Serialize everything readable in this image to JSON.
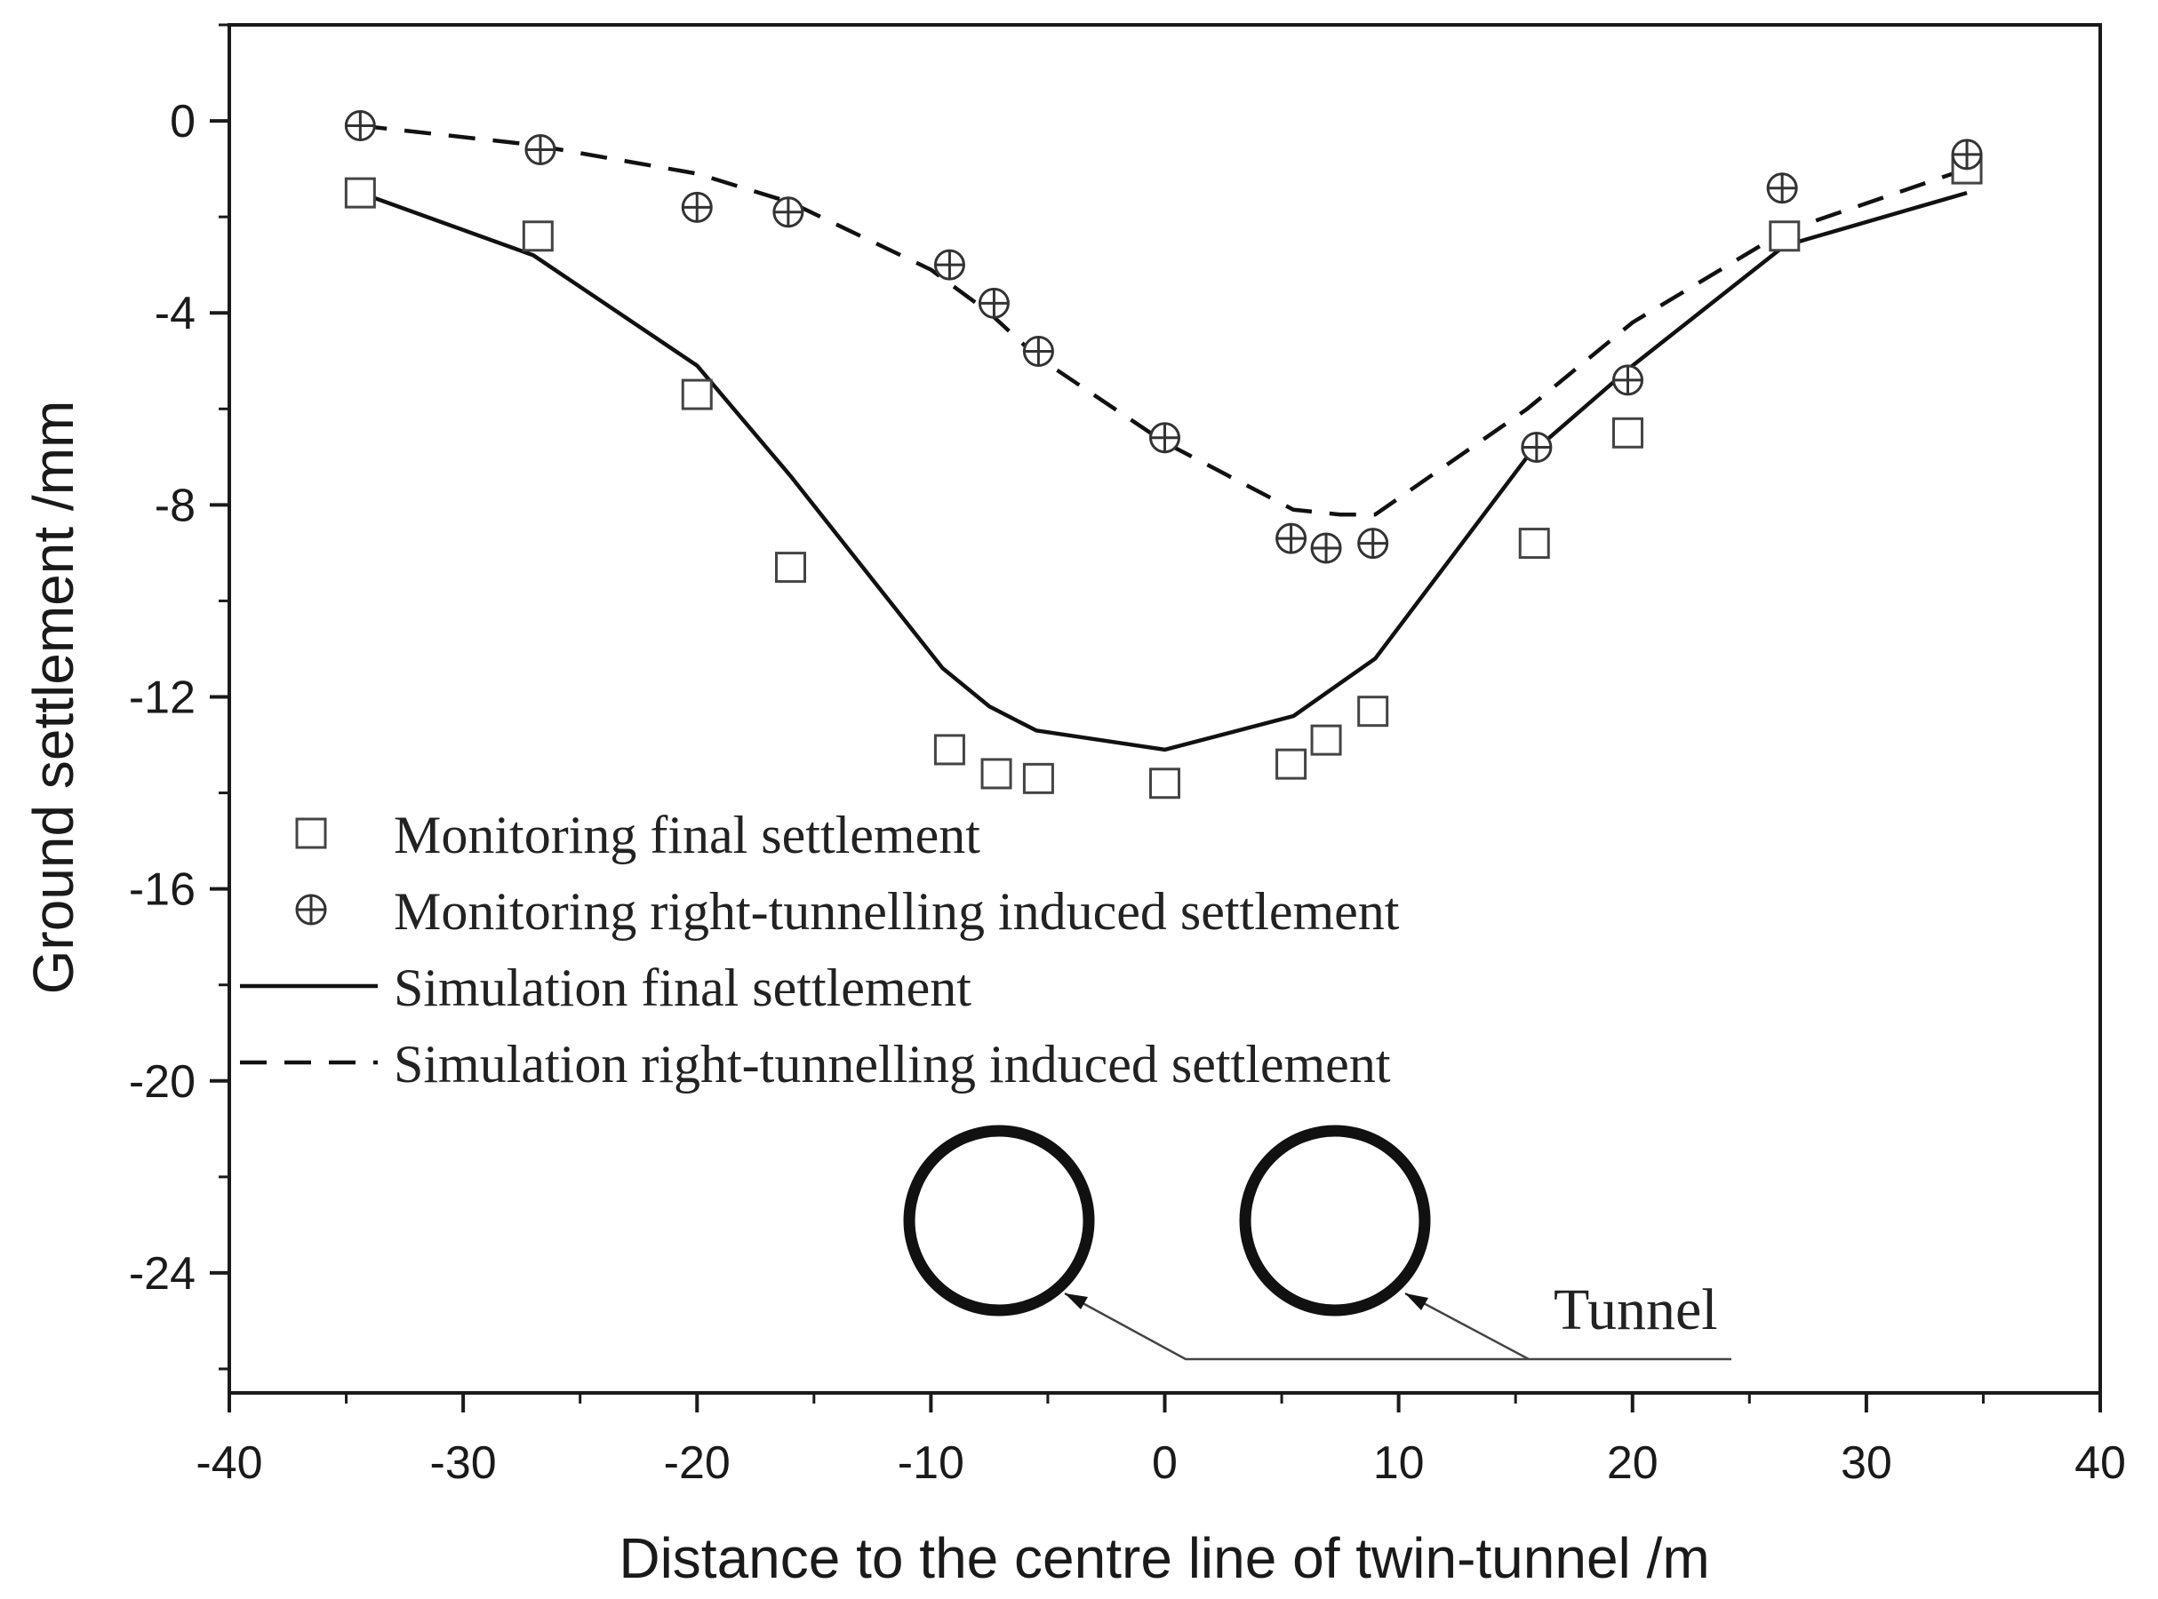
{
  "chart_data": {
    "type": "line",
    "title": "",
    "xlabel": "Distance to the centre line of twin-tunnel /m",
    "ylabel": "Ground settlement /mm",
    "xlim": [
      -40,
      40
    ],
    "ylim": [
      -26.5,
      2
    ],
    "xticks": [
      -40,
      -30,
      -20,
      -10,
      0,
      10,
      20,
      30,
      40
    ],
    "xtick_labels": [
      "-40",
      "-30",
      "-20",
      "-10",
      "0",
      "10",
      "20",
      "30",
      "40"
    ],
    "yticks": [
      0,
      -4,
      -8,
      -12,
      -16,
      -20,
      -24
    ],
    "ytick_labels": [
      "0",
      "-4",
      "-8",
      "-12",
      "-16",
      "-20",
      "-24"
    ],
    "grid": false,
    "legend_position": "lower-left",
    "series": [
      {
        "name": "Monitoring final settlement",
        "kind": "scatter",
        "marker": "square",
        "x": [
          -34.4,
          -26.8,
          -20.0,
          -16.0,
          -9.2,
          -7.2,
          -5.4,
          0.0,
          5.4,
          6.9,
          8.9,
          15.8,
          19.8,
          26.5,
          34.3
        ],
        "y": [
          -1.5,
          -2.4,
          -5.7,
          -9.3,
          -13.1,
          -13.6,
          -13.7,
          -13.8,
          -13.4,
          -12.9,
          -12.3,
          -8.8,
          -6.5,
          -2.4,
          -1.0
        ]
      },
      {
        "name": "Monitoring right-tunnelling induced settlement",
        "kind": "scatter",
        "marker": "circle-plus",
        "x": [
          -34.4,
          -26.7,
          -20.0,
          -16.1,
          -9.2,
          -7.3,
          -5.4,
          0.0,
          5.4,
          6.9,
          8.9,
          15.9,
          19.8,
          26.4,
          34.3
        ],
        "y": [
          -0.1,
          -0.6,
          -1.8,
          -1.9,
          -3.0,
          -3.8,
          -4.8,
          -6.6,
          -8.7,
          -8.9,
          -8.8,
          -6.8,
          -5.4,
          -1.4,
          -0.7
        ]
      },
      {
        "name": "Simulation final settlement",
        "kind": "line",
        "style": "solid",
        "x": [
          -34.4,
          -27.0,
          -20.0,
          -16.0,
          -9.5,
          -7.5,
          -5.5,
          0.0,
          5.5,
          9.0,
          15.5,
          20.0,
          26.5,
          34.3
        ],
        "y": [
          -1.5,
          -2.8,
          -5.1,
          -7.4,
          -11.4,
          -12.2,
          -12.7,
          -13.1,
          -12.4,
          -11.2,
          -7.0,
          -5.1,
          -2.6,
          -1.5
        ]
      },
      {
        "name": "Simulation right-tunnelling induced settlement",
        "kind": "line",
        "style": "dashed",
        "x": [
          -34.4,
          -27.0,
          -20.0,
          -16.0,
          -10.0,
          -7.5,
          -5.5,
          0.0,
          5.5,
          7.5,
          9.0,
          15.5,
          20.0,
          26.5,
          34.3
        ],
        "y": [
          -0.1,
          -0.5,
          -1.1,
          -1.7,
          -3.1,
          -4.0,
          -4.9,
          -6.7,
          -8.1,
          -8.2,
          -8.2,
          -6.0,
          -4.2,
          -2.3,
          -1.0
        ]
      }
    ],
    "annotations": [
      {
        "text": "Tunnel",
        "points_to": "tunnel cross-sections"
      }
    ]
  }
}
